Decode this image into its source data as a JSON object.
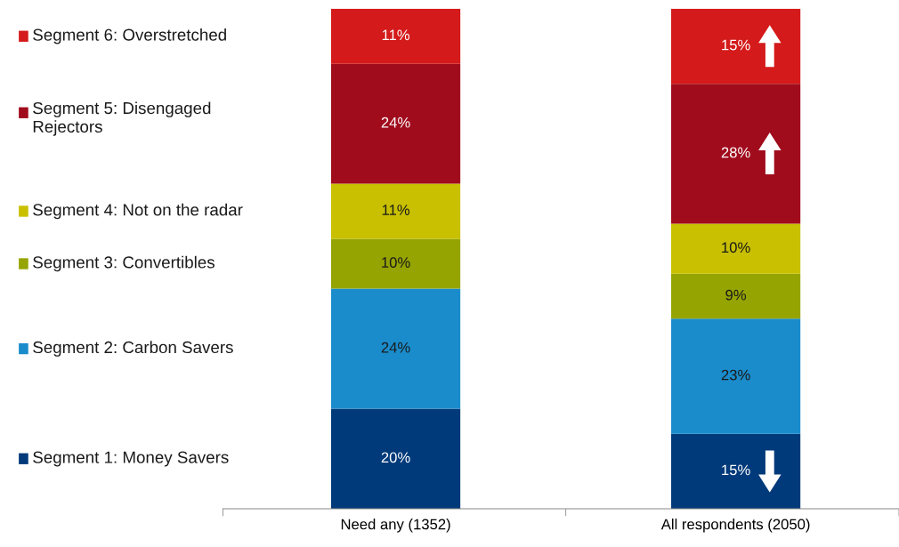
{
  "chart_data": {
    "type": "bar",
    "stacked": true,
    "categories": [
      "Need any (1352)",
      "All respondents (2050)"
    ],
    "ylim": [
      0,
      100
    ],
    "legend": "left",
    "grid": false,
    "series": [
      {
        "name": "Segment 1: Money Savers",
        "color": "#003a7a",
        "values": [
          20,
          15
        ],
        "value_labels": [
          "20%",
          "15%"
        ]
      },
      {
        "name": "Segment 2: Carbon Savers",
        "color": "#1a8ccc",
        "values": [
          24,
          23
        ],
        "value_labels": [
          "24%",
          "23%"
        ]
      },
      {
        "name": "Segment 3: Convertibles",
        "color": "#95a400",
        "values": [
          10,
          9
        ],
        "value_labels": [
          "10%",
          "9%"
        ]
      },
      {
        "name": "Segment 4: Not on the radar",
        "color": "#c8c000",
        "values": [
          11,
          10
        ],
        "value_labels": [
          "11%",
          "10%"
        ]
      },
      {
        "name": "Segment 5: Disengaged\nRejectors",
        "color": "#a00c1c",
        "values": [
          24,
          28
        ],
        "value_labels": [
          "24%",
          "28%"
        ]
      },
      {
        "name": "Segment 6: Overstretched",
        "color": "#d41a1a",
        "values": [
          11,
          15
        ],
        "value_labels": [
          "11%",
          "15%"
        ]
      }
    ]
  }
}
